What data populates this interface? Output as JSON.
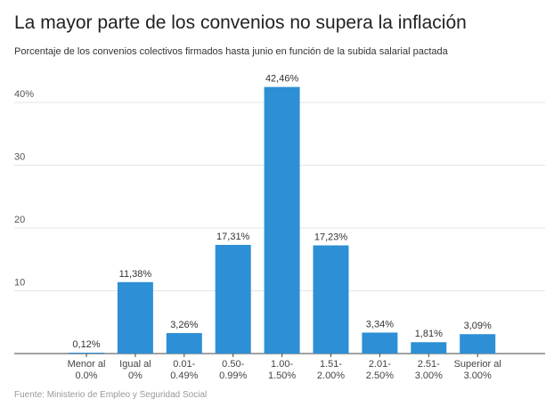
{
  "title": "La mayor parte de los convenios no supera la inflación",
  "subtitle": "Porcentaje de los convenios colectivos firmados hasta junio en función de la subida salarial pactada",
  "source": "Fuente: Ministerio de Empleo y Seguridad Social",
  "chart_data": {
    "type": "bar",
    "title": "La mayor parte de los convenios no supera la inflación",
    "subtitle": "Porcentaje de los convenios colectivos firmados hasta junio en función de la subida salarial pactada",
    "xlabel": "",
    "ylabel": "",
    "ylim": [
      0,
      45
    ],
    "yticks": [
      10,
      20,
      30,
      40
    ],
    "ytick_labels": [
      "10",
      "20",
      "30",
      "40%"
    ],
    "grid": true,
    "bar_color": "#2d8fd5",
    "categories": [
      [
        "Menor al",
        "0.0%"
      ],
      [
        "Igual al",
        "0%"
      ],
      [
        "0.01-",
        "0.49%"
      ],
      [
        "0.50-",
        "0.99%"
      ],
      [
        "1.00-",
        "1.50%"
      ],
      [
        "1.51-",
        "2.00%"
      ],
      [
        "2.01-",
        "2.50%"
      ],
      [
        "2.51-",
        "3.00%"
      ],
      [
        "Superior al",
        "3.00%"
      ]
    ],
    "values": [
      0.12,
      11.38,
      3.26,
      17.31,
      42.46,
      17.23,
      3.34,
      1.81,
      3.09
    ],
    "value_labels": [
      "0,12%",
      "11,38%",
      "3,26%",
      "17,31%",
      "42,46%",
      "17,23%",
      "3,34%",
      "1,81%",
      "3,09%"
    ]
  }
}
